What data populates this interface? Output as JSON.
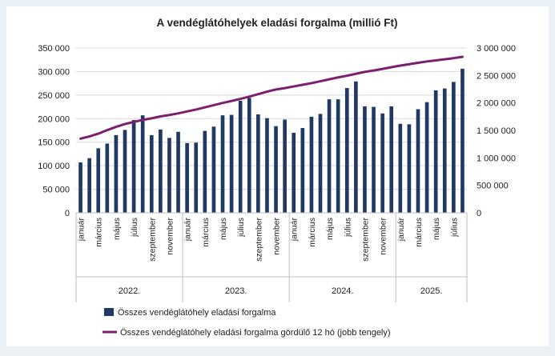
{
  "chart_data": {
    "type": "bar+line",
    "title": "A vendéglátóhelyek eladási forgalma (millió Ft)",
    "left_axis": {
      "min": 0,
      "max": 350000,
      "step": 50000,
      "tick_labels": [
        "0",
        "50 000",
        "100 000",
        "150 000",
        "200 000",
        "250 000",
        "300 000",
        "350 000"
      ]
    },
    "right_axis": {
      "min": 0,
      "max": 3000000,
      "step": 500000,
      "tick_labels": [
        "0",
        "500 000",
        "1 000 000",
        "1 500 000",
        "2 000 000",
        "2 500 000",
        "3 000 000"
      ]
    },
    "years": [
      {
        "label": "2022.",
        "months": 12
      },
      {
        "label": "2023.",
        "months": 12
      },
      {
        "label": "2024.",
        "months": 12
      },
      {
        "label": "2025.",
        "months": 8
      }
    ],
    "month_labels": [
      "január",
      "március",
      "május",
      "július",
      "szeptember",
      "november"
    ],
    "series": [
      {
        "name": "Összes vendéglátóhely eladási forgalma",
        "type": "bar",
        "axis": "left",
        "color": "#1f3864",
        "values": [
          107000,
          116000,
          137000,
          147000,
          165000,
          176000,
          197000,
          207000,
          165000,
          177000,
          159000,
          172000,
          148000,
          149000,
          174000,
          183000,
          207000,
          208000,
          238000,
          244000,
          209000,
          201000,
          184000,
          198000,
          170000,
          180000,
          204000,
          210000,
          241000,
          241000,
          265000,
          279000,
          226000,
          225000,
          211000,
          226000,
          189000,
          188000,
          220000,
          235000,
          260000,
          264000,
          278000,
          306000
        ]
      },
      {
        "name": "Összes vendéglátóhely eladási forgalma gördülő 12 hó (jobb tengely)",
        "type": "line",
        "axis": "right",
        "color": "#7b1f6e",
        "values": [
          1350000,
          1390000,
          1440000,
          1505000,
          1565000,
          1615000,
          1655000,
          1690000,
          1720000,
          1755000,
          1780000,
          1810000,
          1845000,
          1880000,
          1920000,
          1960000,
          2000000,
          2035000,
          2075000,
          2115000,
          2160000,
          2205000,
          2245000,
          2270000,
          2300000,
          2330000,
          2360000,
          2395000,
          2430000,
          2465000,
          2495000,
          2530000,
          2565000,
          2590000,
          2620000,
          2650000,
          2680000,
          2705000,
          2730000,
          2755000,
          2775000,
          2795000,
          2815000,
          2840000
        ]
      }
    ],
    "legend": [
      "Összes vendéglátóhely eladási forgalma",
      "Összes vendéglátóhely eladási forgalma gördülő 12 hó (jobb tengely)"
    ]
  }
}
